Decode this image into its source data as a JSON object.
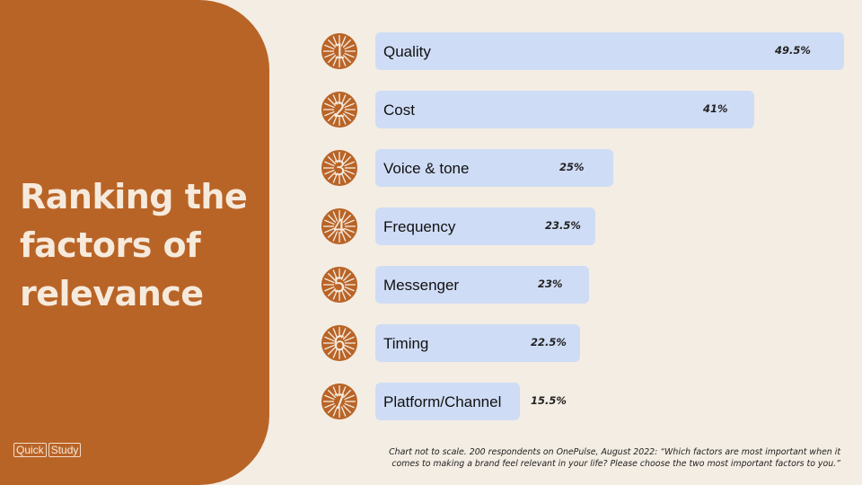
{
  "title_lines": [
    "Ranking the",
    "factors of",
    "relevance"
  ],
  "logo": {
    "word1": "Quick",
    "word2": "Study"
  },
  "footnote": {
    "line1": "Chart not to scale. 200 respondents on OnePulse, August 2022: “Which factors are most important when it",
    "line2": "comes to making a brand feel relevant in your life? Please choose the two most important factors to you.”"
  },
  "colors": {
    "panel": "#b96427",
    "background": "#f4ede3",
    "bar": "#cfdcf5",
    "badge": "#b96427"
  },
  "chart_data": {
    "type": "bar",
    "orientation": "horizontal",
    "categories": [
      "Quality",
      "Cost",
      "Voice & tone",
      "Frequency",
      "Messenger",
      "Timing",
      "Platform/Channel"
    ],
    "values": [
      49.5,
      41,
      25,
      23.5,
      23,
      22.5,
      15.5
    ],
    "value_labels": [
      "49.5%",
      "41%",
      "25%",
      "23.5%",
      "23%",
      "22.5%",
      "15.5%"
    ],
    "ranks": [
      "1",
      "2",
      "3",
      "4",
      "5",
      "6",
      "7"
    ],
    "grid": false
  }
}
